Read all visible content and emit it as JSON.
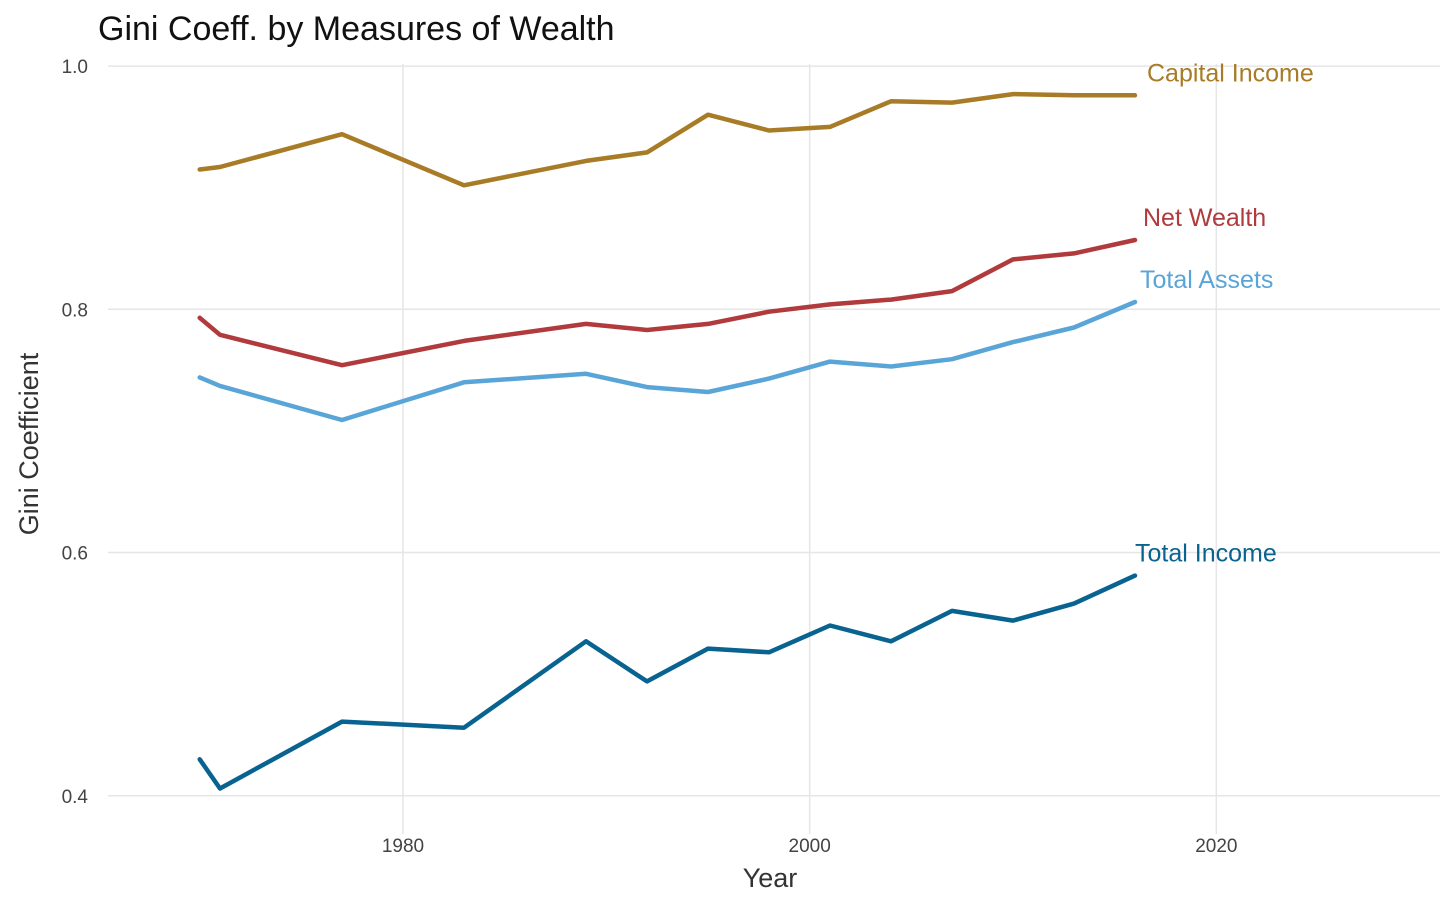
{
  "chart_data": {
    "type": "line",
    "title": "Gini Coeff. by Measures of Wealth",
    "xlabel": "Year",
    "ylabel": "Gini Coefficient",
    "xlim": [
      1965,
      2031
    ],
    "ylim": [
      0.385,
      1.005
    ],
    "xticks": [
      1980,
      2000,
      2020
    ],
    "yticks": [
      0.4,
      0.6,
      0.8,
      1.0
    ],
    "ytick_labels": [
      "0.4",
      "0.6",
      "0.8",
      "1.0"
    ],
    "grid": true,
    "legend": "direct-labels-at-line-ends",
    "x": [
      1970,
      1971,
      1977,
      1983,
      1989,
      1992,
      1995,
      1998,
      2001,
      2004,
      2007,
      2010,
      2013,
      2016
    ],
    "series": [
      {
        "name": "Capital Income",
        "color": "#A87C26",
        "values": [
          0.915,
          0.917,
          0.944,
          0.902,
          0.922,
          0.929,
          0.96,
          0.947,
          0.95,
          0.971,
          0.97,
          0.977,
          0.976,
          0.976
        ]
      },
      {
        "name": "Net Wealth",
        "color": "#B03A3C",
        "values": [
          0.793,
          0.779,
          0.754,
          0.774,
          0.788,
          0.783,
          0.788,
          0.798,
          0.804,
          0.808,
          0.815,
          0.841,
          0.846,
          0.857
        ]
      },
      {
        "name": "Total Assets",
        "color": "#5AA5D8",
        "values": [
          0.744,
          0.737,
          0.709,
          0.74,
          0.747,
          0.736,
          0.732,
          0.743,
          0.757,
          0.753,
          0.759,
          0.773,
          0.785,
          0.806
        ]
      },
      {
        "name": "Total Income",
        "color": "#096391",
        "values": [
          0.43,
          0.406,
          0.461,
          0.456,
          0.527,
          0.494,
          0.521,
          0.518,
          0.54,
          0.527,
          0.552,
          0.544,
          0.558,
          0.581
        ]
      }
    ]
  }
}
